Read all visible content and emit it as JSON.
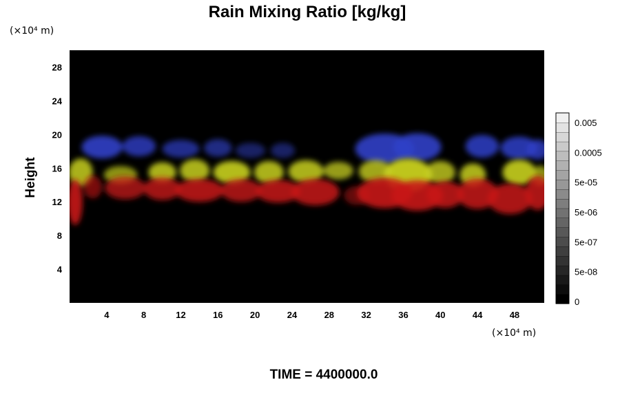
{
  "chart_data": {
    "type": "heatmap",
    "title": "Rain Mixing Ratio [kg/kg]",
    "xlabel": "",
    "ylabel": "Height",
    "x_unit": "(×10⁴ m)",
    "y_unit": "(×10⁴ m)",
    "xlim": [
      0,
      51.2
    ],
    "ylim": [
      0,
      30
    ],
    "x_ticks": [
      "4",
      "8",
      "12",
      "16",
      "20",
      "24",
      "28",
      "32",
      "36",
      "40",
      "44",
      "48"
    ],
    "y_ticks": [
      "4",
      "8",
      "12",
      "16",
      "20",
      "24",
      "28"
    ],
    "background_color": "#000000",
    "layers": [
      {
        "color": "#3040c8",
        "height_range": [
          17,
          20
        ],
        "description_level": "upper"
      },
      {
        "color": "#c8d020",
        "height_range": [
          14,
          17
        ],
        "description_level": "middle"
      },
      {
        "color": "#c81818",
        "height_range": [
          10.5,
          15
        ],
        "description_level": "lower"
      }
    ],
    "colorbar": {
      "labels": [
        "0.005",
        "0.0005",
        "5e-05",
        "5e-06",
        "5e-07",
        "5e-08",
        "0"
      ],
      "levels": 20,
      "min_color": "#000000",
      "max_color": "#f0f0f0"
    }
  },
  "footer": {
    "time_label": "TIME = 4400000.0"
  }
}
